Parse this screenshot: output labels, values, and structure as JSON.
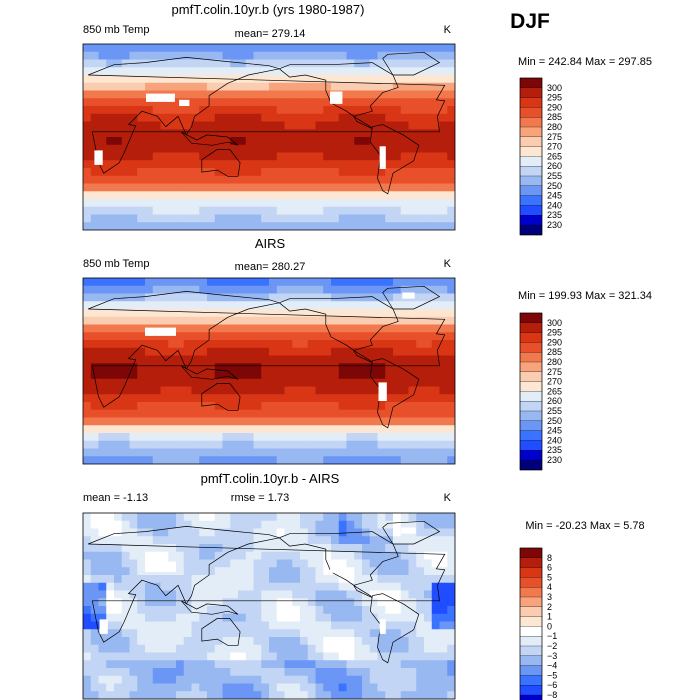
{
  "season": "DJF",
  "colors": {
    "temperature": [
      "#00007a",
      "#0000cc",
      "#1f4dff",
      "#3a73ff",
      "#6b96f5",
      "#98b8f2",
      "#c2d5f5",
      "#e3edf8",
      "#fde6d2",
      "#fbcdb0",
      "#f7a47c",
      "#f2784d",
      "#e8502b",
      "#d93616",
      "#b51e0a",
      "#7d0606"
    ],
    "difference": [
      "#00007a",
      "#0000cc",
      "#1f4dff",
      "#3a73ff",
      "#6b96f5",
      "#98b8f2",
      "#c2d5f5",
      "#e3edf8",
      "#ffffff",
      "#fde6d2",
      "#fbcdb0",
      "#f7a47c",
      "#f2784d",
      "#e8502b",
      "#d93616",
      "#b51e0a",
      "#7d0606"
    ],
    "outline": "#000000"
  },
  "chart_data": [
    {
      "type": "heatmap",
      "title": "pmfT.colin.10yr.b (yrs 1980-1987)",
      "left_label": "850 mb Temp",
      "center_label": "mean=  279.14",
      "units": "K",
      "min_max": "Min =  242.84  Max =  297.85",
      "colorbar_levels": [
        "300",
        "295",
        "290",
        "285",
        "280",
        "275",
        "270",
        "265",
        "260",
        "255",
        "250",
        "245",
        "240",
        "235",
        "230"
      ],
      "field": {
        "equator": 298,
        "pole": 244,
        "north_pole": 246,
        "south_pole": 262
      }
    },
    {
      "type": "heatmap",
      "title": "AIRS",
      "left_label": "850 mb Temp",
      "center_label": "mean=  280.27",
      "units": "K",
      "min_max": "Min =  199.93  Max =  321.34",
      "colorbar_levels": [
        "300",
        "295",
        "290",
        "285",
        "280",
        "275",
        "270",
        "265",
        "260",
        "255",
        "250",
        "245",
        "240",
        "235",
        "230"
      ],
      "field": {
        "equator": 299,
        "pole": 240,
        "north_pole": 244,
        "south_pole": 258
      }
    },
    {
      "type": "heatmap",
      "title": "pmfT.colin.10yr.b - AIRS",
      "left_label": "mean =   -1.13",
      "center_label": "rmse =    1.73",
      "units": "K",
      "min_max": "Min = -20.23  Max =    5.78",
      "colorbar_levels": [
        "8",
        "6",
        "5",
        "4",
        "3",
        "2",
        "1",
        "0",
        "−1",
        "−2",
        "−3",
        "−4",
        "−5",
        "−6",
        "−8"
      ],
      "field": {
        "mean": -1.13,
        "rmse": 1.73
      }
    }
  ]
}
